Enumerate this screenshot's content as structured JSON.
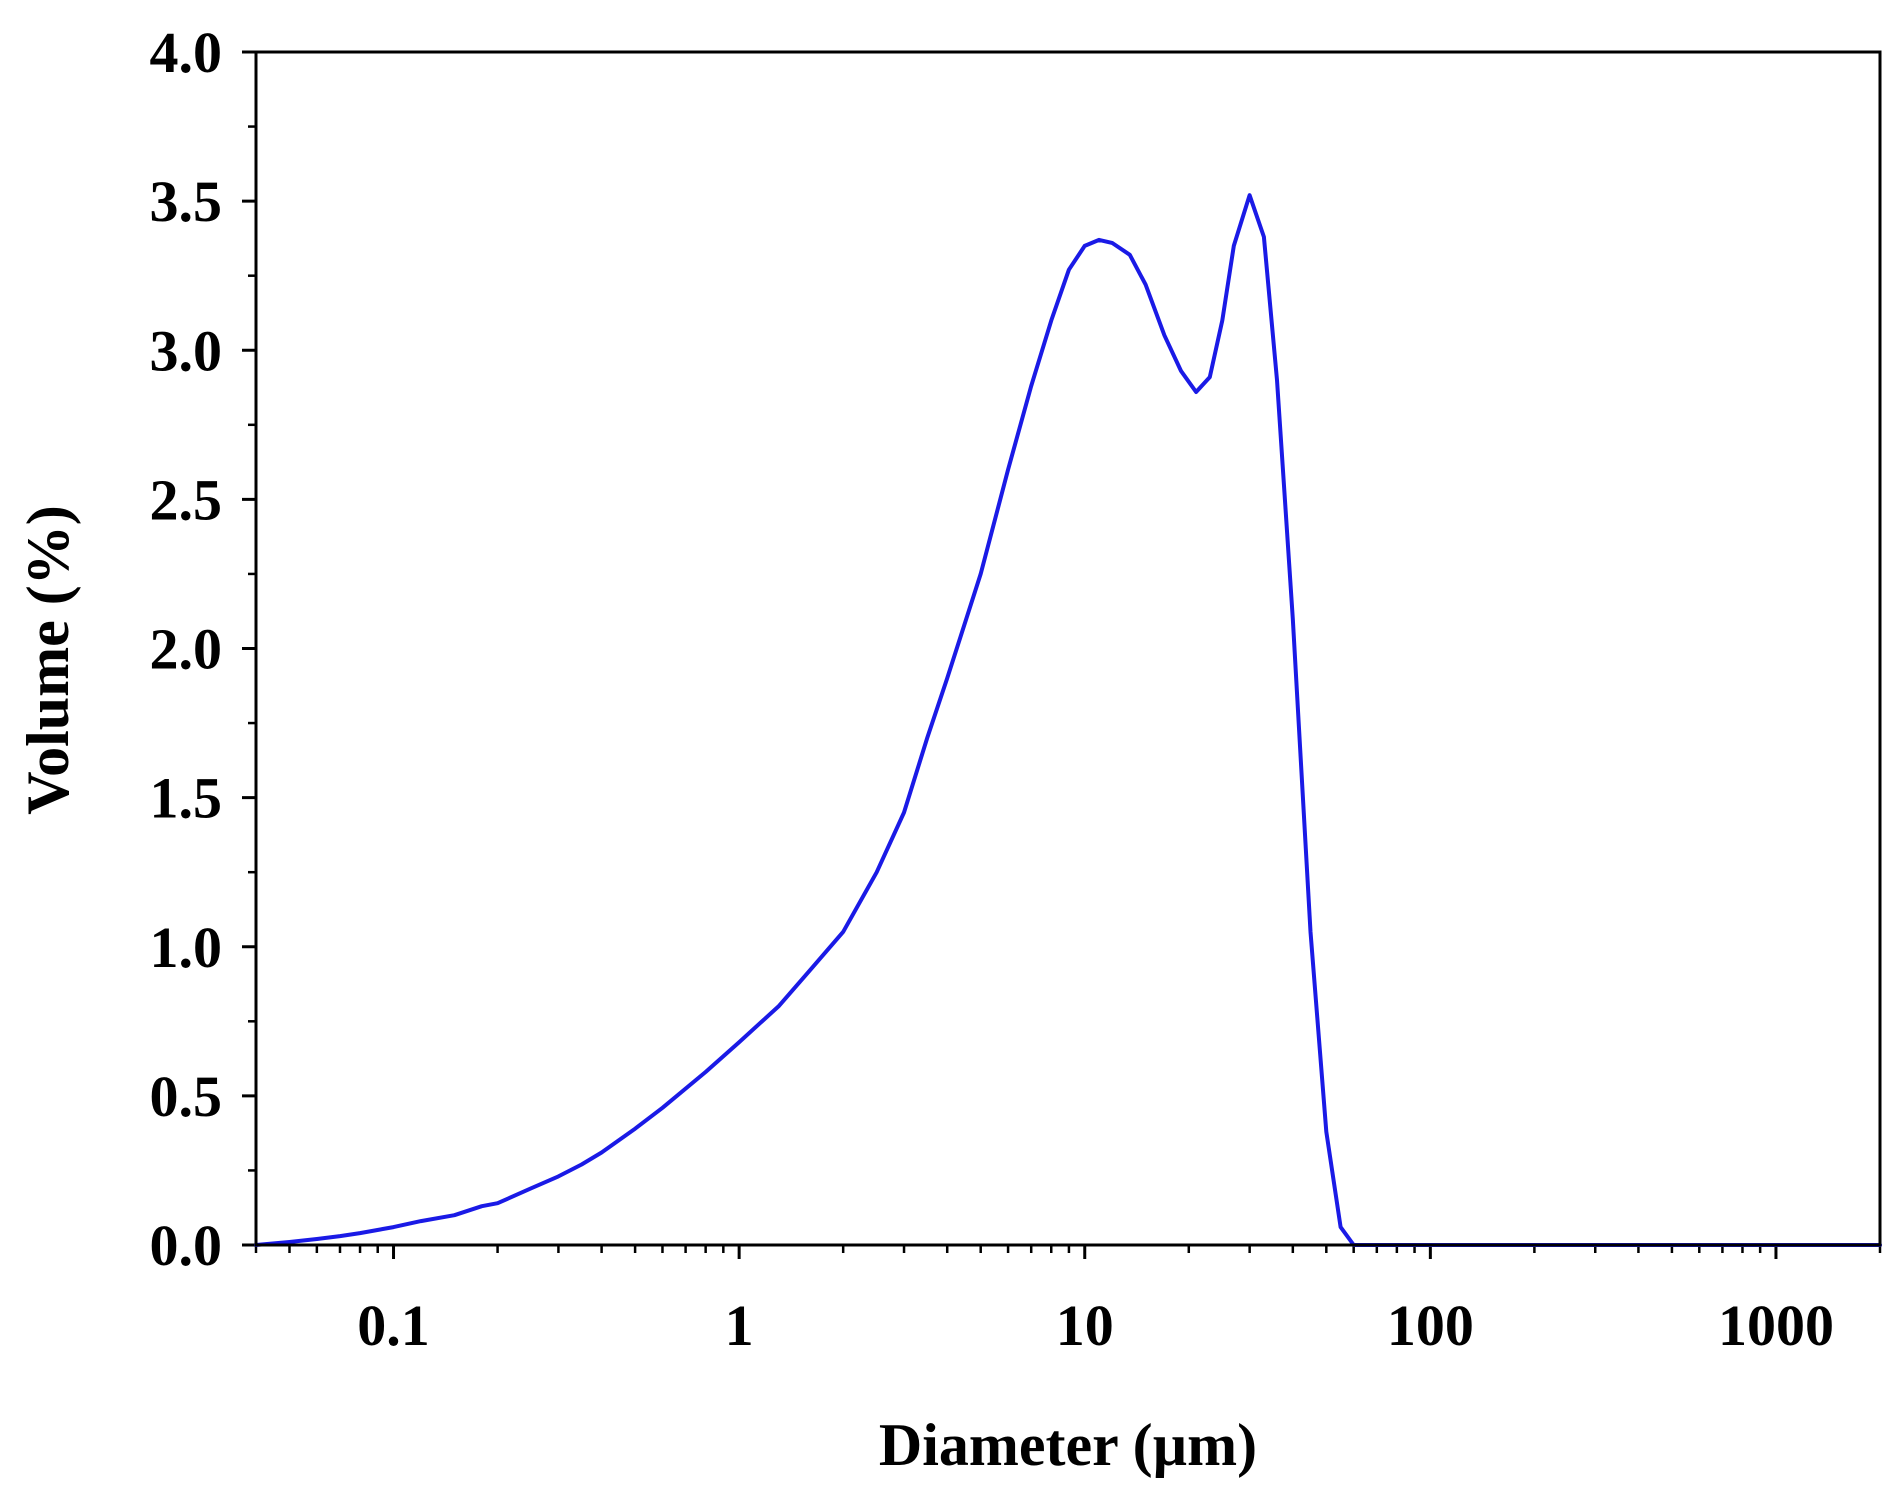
{
  "chart_data": {
    "type": "line",
    "title": "",
    "xlabel": "Diameter (µm)",
    "ylabel": "Volume (%)",
    "xscale": "log",
    "xlim": [
      0.04,
      2000
    ],
    "ylim": [
      0,
      4.0
    ],
    "grid": false,
    "legend": "none",
    "xticks": [
      {
        "value": 0.1,
        "label": "0.1"
      },
      {
        "value": 1,
        "label": "1"
      },
      {
        "value": 10,
        "label": "10"
      },
      {
        "value": 100,
        "label": "100"
      },
      {
        "value": 1000,
        "label": "1000"
      }
    ],
    "yticks": [
      {
        "value": 0.0,
        "label": "0.0"
      },
      {
        "value": 0.5,
        "label": "0.5"
      },
      {
        "value": 1.0,
        "label": "1.0"
      },
      {
        "value": 1.5,
        "label": "1.5"
      },
      {
        "value": 2.0,
        "label": "2.0"
      },
      {
        "value": 2.5,
        "label": "2.5"
      },
      {
        "value": 3.0,
        "label": "3.0"
      },
      {
        "value": 3.5,
        "label": "3.5"
      },
      {
        "value": 4.0,
        "label": "4.0"
      }
    ],
    "series": [
      {
        "color": "#1a1ae6",
        "x": [
          0.04,
          0.05,
          0.06,
          0.07,
          0.08,
          0.1,
          0.12,
          0.15,
          0.18,
          0.2,
          0.25,
          0.3,
          0.35,
          0.4,
          0.5,
          0.6,
          0.8,
          1.0,
          1.3,
          1.6,
          2.0,
          2.5,
          3.0,
          3.5,
          4.0,
          5.0,
          6.0,
          7.0,
          8.0,
          9.0,
          10.0,
          11.0,
          12.0,
          13.5,
          15.0,
          17.0,
          19.0,
          21.0,
          23.0,
          25.0,
          27.0,
          30.0,
          33.0,
          36.0,
          40.0,
          45.0,
          50.0,
          55.0,
          60.0,
          70.0,
          100,
          200,
          500,
          1000,
          2000
        ],
        "y": [
          0.0,
          0.01,
          0.02,
          0.03,
          0.04,
          0.06,
          0.08,
          0.1,
          0.13,
          0.14,
          0.19,
          0.23,
          0.27,
          0.31,
          0.39,
          0.46,
          0.58,
          0.68,
          0.8,
          0.92,
          1.05,
          1.25,
          1.45,
          1.7,
          1.9,
          2.25,
          2.6,
          2.88,
          3.1,
          3.27,
          3.35,
          3.37,
          3.36,
          3.32,
          3.22,
          3.05,
          2.93,
          2.86,
          2.91,
          3.1,
          3.35,
          3.52,
          3.38,
          2.9,
          2.1,
          1.05,
          0.38,
          0.06,
          0.0,
          0.0,
          0.0,
          0.0,
          0.0,
          0.0,
          0.0
        ]
      }
    ]
  }
}
